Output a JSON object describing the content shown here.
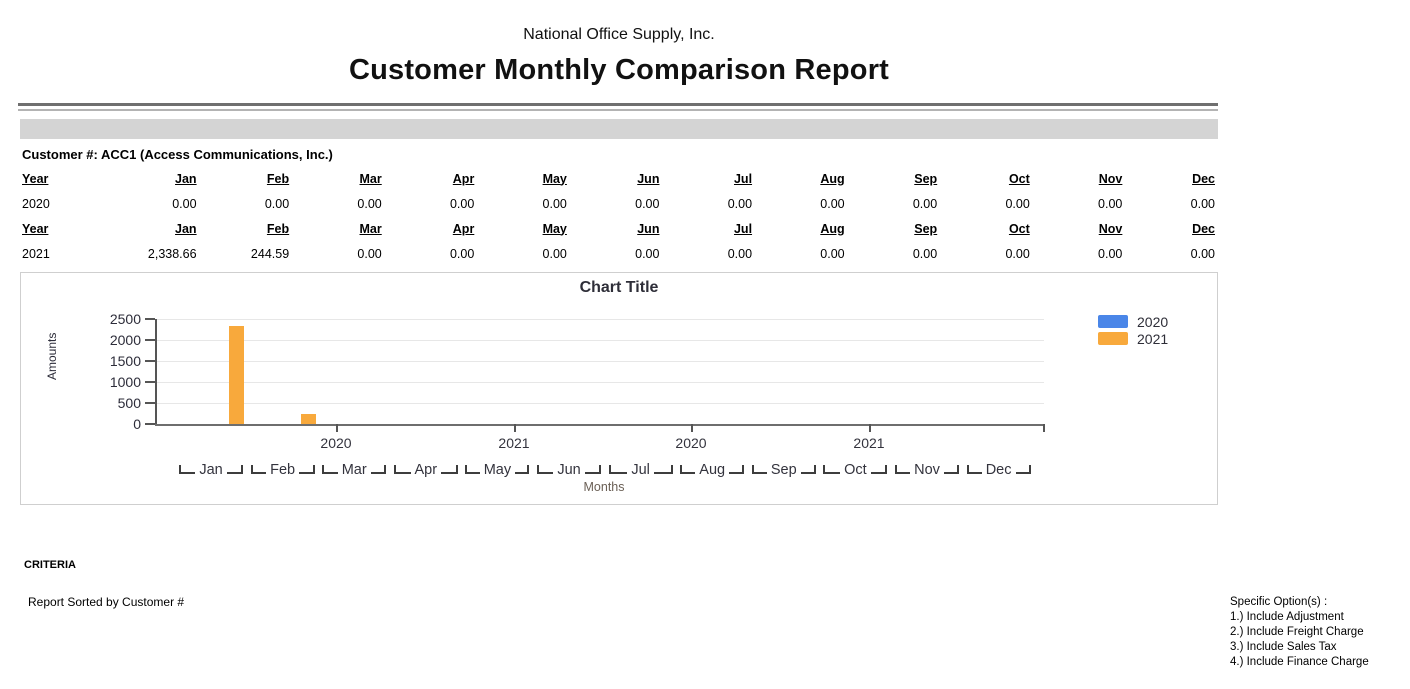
{
  "header": {
    "company": "National Office Supply, Inc.",
    "title": "Customer Monthly Comparison Report"
  },
  "customer": {
    "label": "Customer #: ACC1 (Access Communications, Inc.)"
  },
  "table": {
    "columns": [
      "Year",
      "Jan",
      "Feb",
      "Mar",
      "Apr",
      "May",
      "Jun",
      "Jul",
      "Aug",
      "Sep",
      "Oct",
      "Nov",
      "Dec"
    ],
    "rows": [
      {
        "year": "2020",
        "values": [
          "0.00",
          "0.00",
          "0.00",
          "0.00",
          "0.00",
          "0.00",
          "0.00",
          "0.00",
          "0.00",
          "0.00",
          "0.00",
          "0.00"
        ]
      },
      {
        "year": "2021",
        "values": [
          "2,338.66",
          "244.59",
          "0.00",
          "0.00",
          "0.00",
          "0.00",
          "0.00",
          "0.00",
          "0.00",
          "0.00",
          "0.00",
          "0.00"
        ]
      }
    ]
  },
  "chart_data": {
    "type": "bar",
    "title": "Chart Title",
    "xlabel": "Months",
    "ylabel": "Amounts",
    "categories": [
      "Jan",
      "Feb",
      "Mar",
      "Apr",
      "May",
      "Jun",
      "Jul",
      "Aug",
      "Sep",
      "Oct",
      "Nov",
      "Dec"
    ],
    "series": [
      {
        "name": "2020",
        "color": "#4A86E8",
        "values": [
          0,
          0,
          0,
          0,
          0,
          0,
          0,
          0,
          0,
          0,
          0,
          0
        ]
      },
      {
        "name": "2021",
        "color": "#F8A93C",
        "values": [
          2338.66,
          244.59,
          0,
          0,
          0,
          0,
          0,
          0,
          0,
          0,
          0,
          0
        ]
      }
    ],
    "ylim": [
      0,
      2500
    ],
    "ytick_step": 500,
    "year_axis_labels": [
      "2020",
      "2021",
      "2020",
      "2021"
    ],
    "grid": true,
    "legend_position": "right"
  },
  "footer": {
    "criteria": "CRITERIA",
    "sorted_by": "Report Sorted by Customer #",
    "options_title": "Specific Option(s) :",
    "options": [
      "1.) Include Adjustment",
      "2.) Include Freight Charge",
      "3.) Include Sales Tax",
      "4.) Include Finance Charge"
    ]
  }
}
